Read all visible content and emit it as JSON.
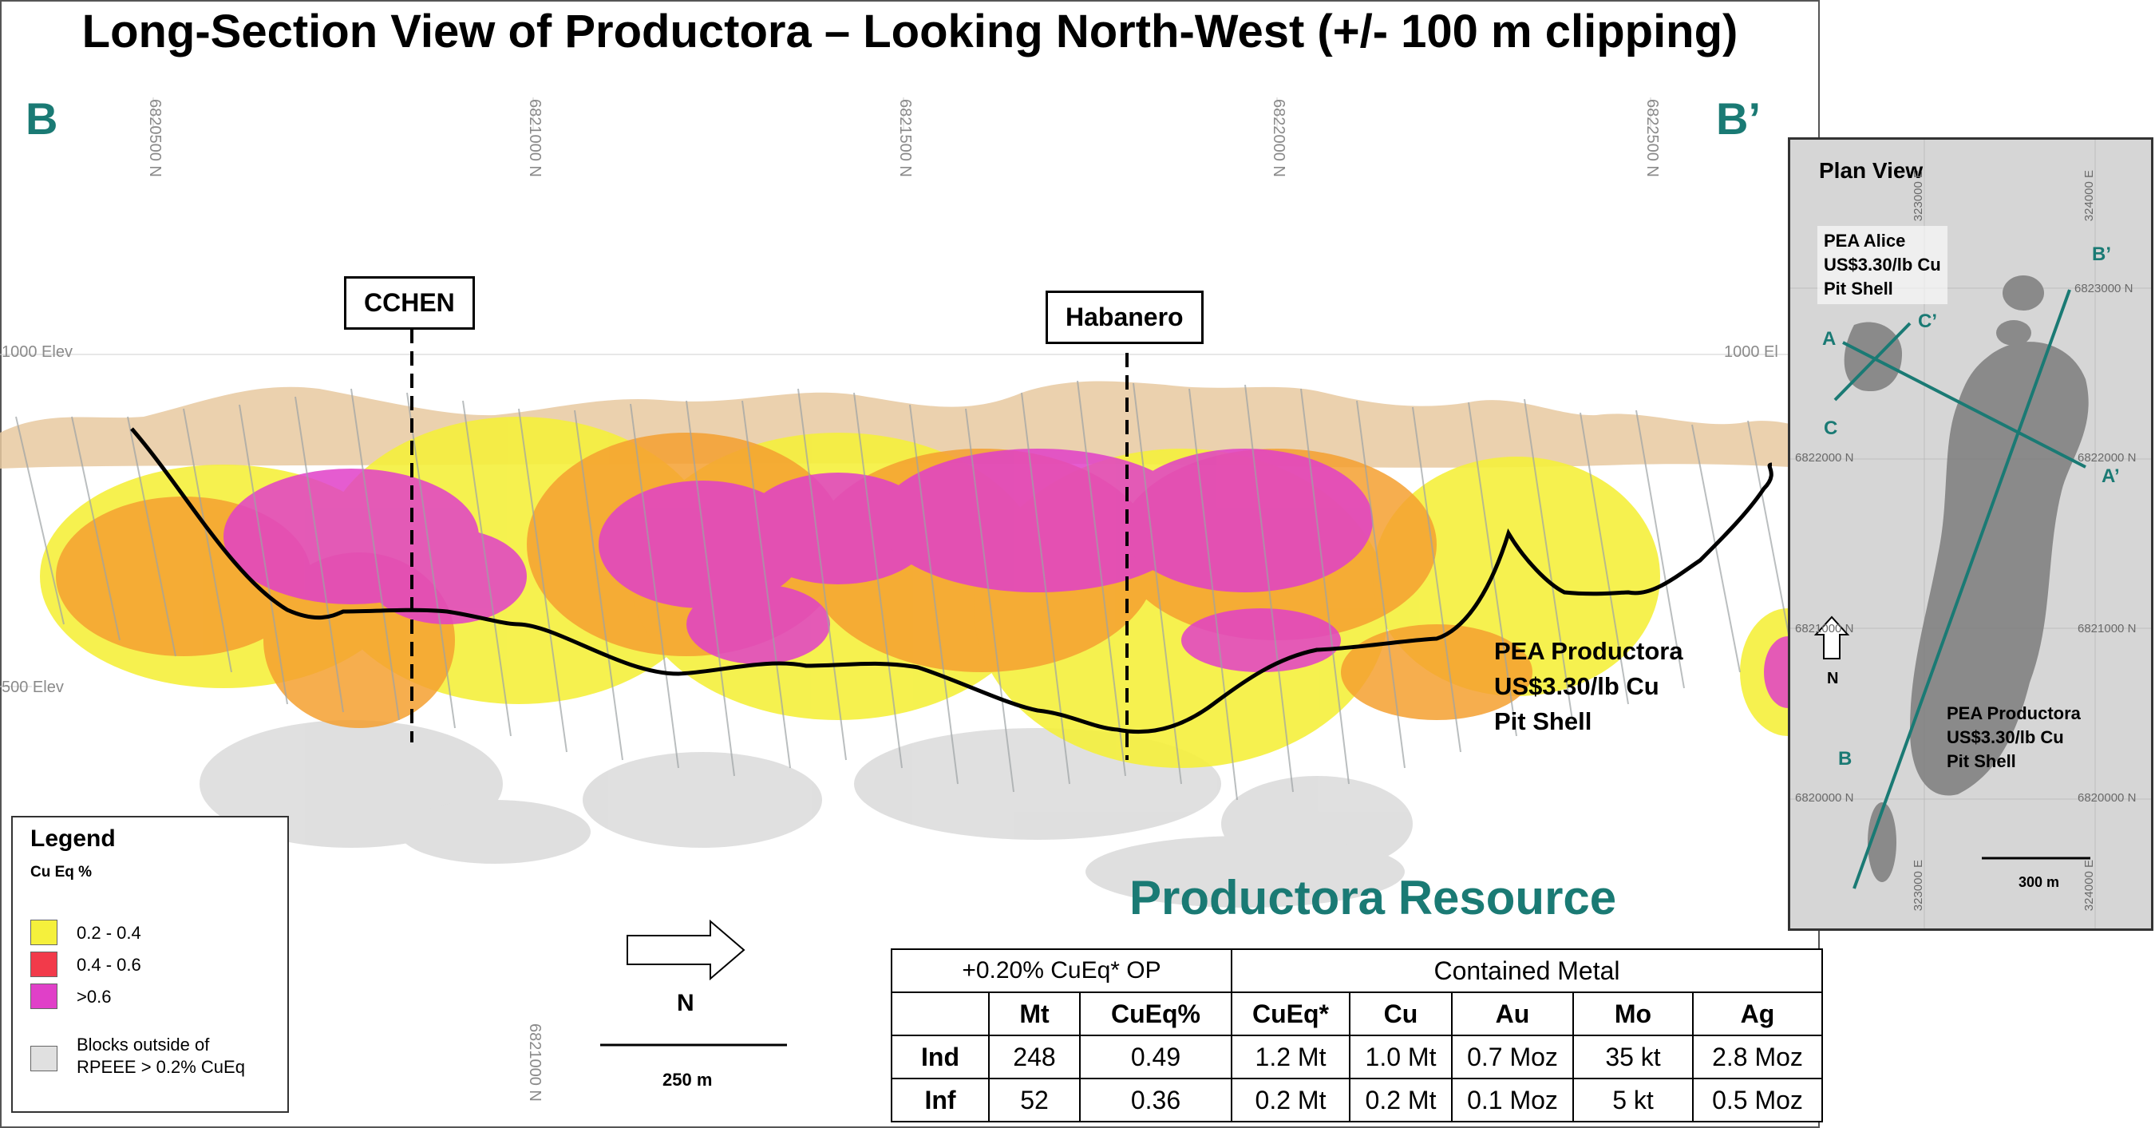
{
  "title": "Long-Section View of Productora – Looking North-West (+/- 100 m clipping)",
  "section": {
    "start_label": "B",
    "end_label": "B’"
  },
  "northings_top": [
    "6820500 N",
    "6821000 N",
    "6821500 N",
    "6822000 N",
    "6822500 N"
  ],
  "northing_bottom": "6821000 N",
  "elevations": {
    "upper": "1000 Elev",
    "upper_right": "1000 El",
    "lower": "500 Elev"
  },
  "callouts": {
    "cchen": "CCHEN",
    "habanero": "Habanero"
  },
  "pit_shell_label": [
    "PEA Productora",
    "US$3.30/lb Cu",
    "Pit Shell"
  ],
  "legend": {
    "title": "Legend",
    "subtitle": "Cu Eq %",
    "items": [
      {
        "label": "0.2 - 0.4",
        "color": "#f5f03c"
      },
      {
        "label": "0.4 - 0.6",
        "color": "#f23a4a"
      },
      {
        "label": ">0.6",
        "color": "#e040c8"
      }
    ],
    "outside": {
      "label_line1": "Blocks outside of",
      "label_line2": "RPEEE > 0.2% CuEq",
      "color": "#e0e0e0"
    }
  },
  "north_arrow": {
    "label": "N"
  },
  "scale_bar": {
    "label": "250 m"
  },
  "resource": {
    "title": "Productora Resource",
    "cutoff_header": "+0.20% CuEq* OP",
    "contained_header": "Contained Metal",
    "columns": [
      "Mt",
      "CuEq%",
      "CuEq*",
      "Cu",
      "Au",
      "Mo",
      "Ag"
    ],
    "rows": [
      {
        "category": "Ind",
        "values": [
          "248",
          "0.49",
          "1.2 Mt",
          "1.0 Mt",
          "0.7 Moz",
          "35 kt",
          "2.8 Moz"
        ]
      },
      {
        "category": "Inf",
        "values": [
          "52",
          "0.36",
          "0.2 Mt",
          "0.2 Mt",
          "0.1 Moz",
          "5 kt",
          "0.5 Moz"
        ]
      }
    ]
  },
  "plan_view": {
    "title": "Plan View",
    "alice_label": [
      "PEA Alice",
      "US$3.30/lb Cu",
      "Pit Shell"
    ],
    "productora_label": [
      "PEA Productora",
      "US$3.30/lb Cu",
      "Pit Shell"
    ],
    "section_letters": {
      "a": "A",
      "a_prime": "A’",
      "b": "B",
      "b_prime": "B’",
      "c": "C",
      "c_prime": "C’"
    },
    "northings": [
      "6823000 N",
      "6822000 N",
      "6822000 N",
      "6821000 N",
      "6821000 N",
      "6820000 N",
      "6820000 N"
    ],
    "eastings": [
      "323000 E",
      "324000 E",
      "323000 E",
      "324000 E"
    ],
    "north_label": "N",
    "scale_label": "300 m"
  },
  "colors": {
    "teal": "#1a7a74",
    "yellow": "#f5f03c",
    "orange": "#f5a030",
    "magenta": "#e040c8",
    "tan": "#e8c9a0",
    "pit_line": "#000000"
  }
}
